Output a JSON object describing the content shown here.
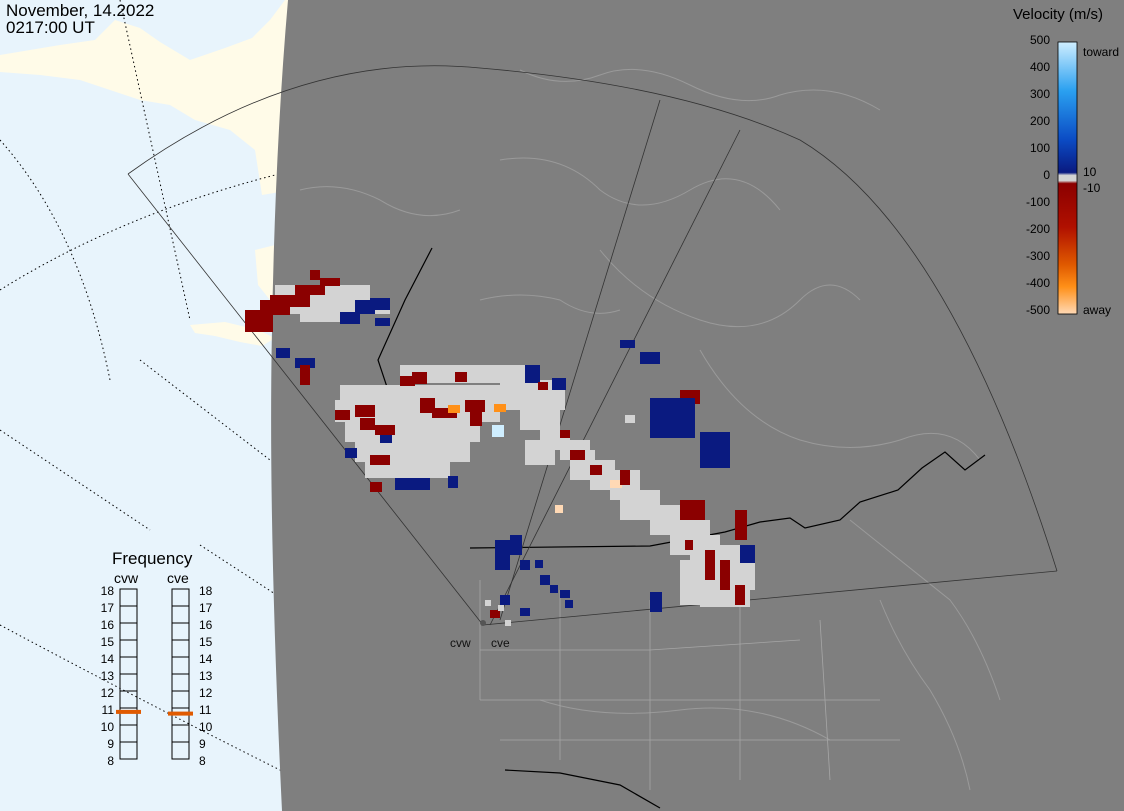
{
  "timestamp": {
    "date": "November, 14.2022",
    "time": "0217:00 UT"
  },
  "velocity_legend": {
    "title": "Velocity (m/s)",
    "ticks": [
      "500",
      "400",
      "300",
      "200",
      "100",
      "0",
      "-100",
      "-200",
      "-300",
      "-400",
      "-500"
    ],
    "low_pos": "10",
    "low_neg": "-10",
    "toward_label": "toward",
    "away_label": "away",
    "colors": {
      "toward_light": "#cfeeff",
      "toward_mid": "#2aa0f0",
      "toward_dark": "#0b2f96",
      "toward_navy": "#0a1a80",
      "ground_scatter": "#d3d3d3",
      "away_dark": "#8b0000",
      "away_mid": "#e05a00",
      "away_orange": "#ff9018",
      "away_light": "#ffd9b5"
    }
  },
  "frequency": {
    "title": "Frequency",
    "radars": [
      {
        "name": "cvw",
        "current_mhz": 10.8
      },
      {
        "name": "cve",
        "current_mhz": 10.7
      }
    ],
    "scale": [
      "18",
      "17",
      "16",
      "15",
      "14",
      "13",
      "12",
      "11",
      "10",
      "9",
      "8"
    ],
    "indicator_color": "#e05a00"
  },
  "map": {
    "ocean_color": "#e8f4fc",
    "land_color": "#fffbe8",
    "night_color": "#7f7f7f",
    "site_labels": [
      "cvw",
      "cve"
    ]
  }
}
